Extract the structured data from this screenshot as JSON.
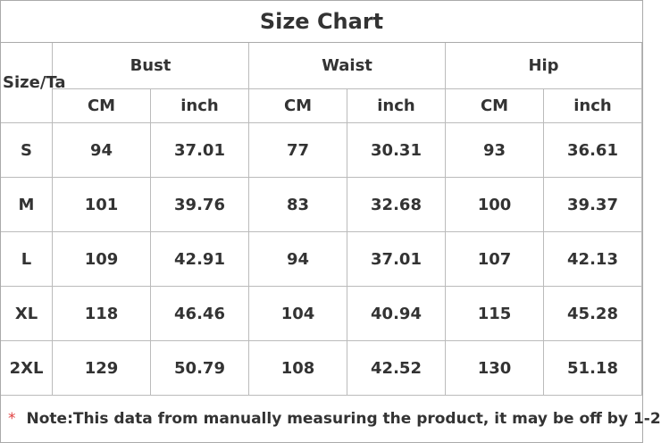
{
  "title": "Size Chart",
  "header": {
    "size_label": "Size/Ta",
    "groups": [
      "Bust",
      "Waist",
      "Hip"
    ],
    "units": [
      "CM",
      "inch",
      "CM",
      "inch",
      "CM",
      "inch"
    ]
  },
  "table": {
    "rows": [
      [
        "S",
        "94",
        "37.01",
        "77",
        "30.31",
        "93",
        "36.61"
      ],
      [
        "M",
        "101",
        "39.76",
        "83",
        "32.68",
        "100",
        "39.37"
      ],
      [
        "L",
        "109",
        "42.91",
        "94",
        "37.01",
        "107",
        "42.13"
      ],
      [
        "XL",
        "118",
        "46.46",
        "104",
        "40.94",
        "115",
        "45.28"
      ],
      [
        "2XL",
        "129",
        "50.79",
        "108",
        "42.52",
        "130",
        "51.18"
      ]
    ]
  },
  "note": {
    "marker": "*",
    "text": "Note:This data from manually measuring the product, it may be off by 1-2"
  }
}
